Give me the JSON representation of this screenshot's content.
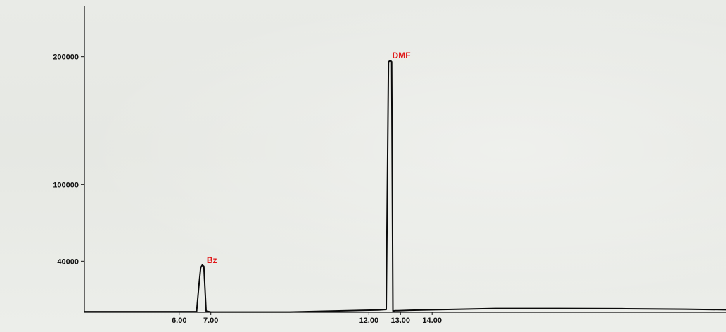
{
  "chart_data": {
    "type": "line",
    "title": "",
    "xlabel": "",
    "ylabel": "",
    "xlim": [
      3.0,
      23.3
    ],
    "ylim": [
      0,
      240000
    ],
    "grid": false,
    "legend": "none",
    "y_ticks": [
      {
        "value": 40000,
        "label": "40000"
      },
      {
        "value": 100000,
        "label": "100000"
      },
      {
        "value": 200000,
        "label": "200000"
      }
    ],
    "x_ticks": [
      {
        "value": 6.0,
        "label": "6.00"
      },
      {
        "value": 7.0,
        "label": "7.00"
      },
      {
        "value": 12.0,
        "label": "12.00"
      },
      {
        "value": 13.0,
        "label": "13.00"
      },
      {
        "value": 14.0,
        "label": "14.00"
      }
    ],
    "series": [
      {
        "x": [
          3.0,
          6.55,
          6.62,
          6.68,
          6.73,
          6.78,
          6.85,
          7.0,
          9.5,
          12.3,
          12.55,
          12.62,
          12.68,
          12.72,
          12.76,
          12.83,
          12.92,
          13.3,
          14.5,
          16.0,
          18.0,
          20.0,
          22.0,
          23.3
        ],
        "y": [
          500,
          500,
          20000,
          35000,
          37000,
          36000,
          1000,
          200,
          200,
          1800,
          2200,
          196000,
          197000,
          196000,
          1000,
          1200,
          1200,
          1600,
          2200,
          3000,
          3000,
          2800,
          2400,
          2000
        ]
      }
    ],
    "annotations": [
      {
        "text": "Bz",
        "x": 6.78,
        "y": 37000
      },
      {
        "text": "DMF",
        "x": 12.65,
        "y": 197000
      }
    ],
    "colors": {
      "line": "#0a0a0a",
      "annotation": "#e01818",
      "axis": "#111111"
    }
  }
}
